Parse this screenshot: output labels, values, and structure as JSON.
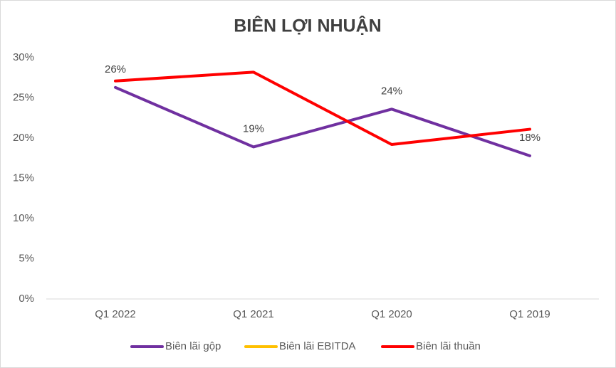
{
  "chart_data": {
    "type": "line",
    "title": "BIÊN LỢI NHUẬN",
    "categories": [
      "Q1 2022",
      "Q1 2021",
      "Q1 2020",
      "Q1 2019"
    ],
    "series": [
      {
        "name": "Biên lãi gộp",
        "color": "#7030a0",
        "values": [
          26.3,
          18.9,
          23.6,
          17.8
        ],
        "value_labels": [
          "26%",
          "19%",
          "24%",
          "18%"
        ]
      },
      {
        "name": "Biên lãi EBITDA",
        "color": "#ffc000",
        "values": [
          null,
          null,
          null,
          null
        ]
      },
      {
        "name": "Biên lãi thuần",
        "color": "#ff0000",
        "values": [
          27.1,
          28.2,
          19.2,
          21.1
        ]
      }
    ],
    "ylim": [
      0,
      30
    ],
    "yticks": [
      {
        "value": 0,
        "label": "0%"
      },
      {
        "value": 5,
        "label": "5%"
      },
      {
        "value": 10,
        "label": "10%"
      },
      {
        "value": 15,
        "label": "15%"
      },
      {
        "value": 20,
        "label": "20%"
      },
      {
        "value": 25,
        "label": "25%"
      },
      {
        "value": 30,
        "label": "30%"
      }
    ],
    "grid": false,
    "legend": "bottom"
  }
}
